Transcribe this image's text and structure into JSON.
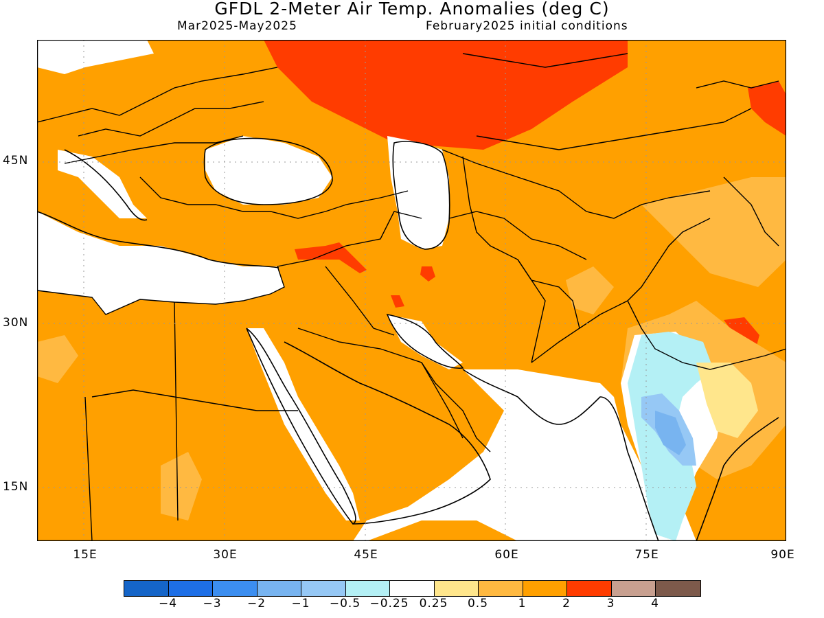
{
  "title": "GFDL 2-Meter Air Temp. Anomalies (deg C)",
  "period": "Mar2025-May2025",
  "init": "February2025 initial conditions",
  "lat_labels": [
    "45N",
    "30N",
    "15N"
  ],
  "lon_labels": [
    "15E",
    "30E",
    "45E",
    "60E",
    "75E",
    "90E"
  ],
  "colorbar": {
    "colors": [
      "#1565c8",
      "#1e6fe6",
      "#3c8ef0",
      "#78b4f0",
      "#96c8f5",
      "#b4f0f5",
      "#ffffff",
      "#ffe68c",
      "#ffb941",
      "#ffa000",
      "#ff3c00",
      "#c8a090",
      "#7d5a4b"
    ],
    "labels": [
      "-4",
      "-3",
      "-2",
      "-1",
      "-0.5",
      "-0.25",
      "0.25",
      "0.5",
      "1",
      "2",
      "3",
      "4"
    ]
  },
  "map_extent": {
    "lon": [
      10,
      90
    ],
    "lat": [
      10,
      55
    ]
  }
}
